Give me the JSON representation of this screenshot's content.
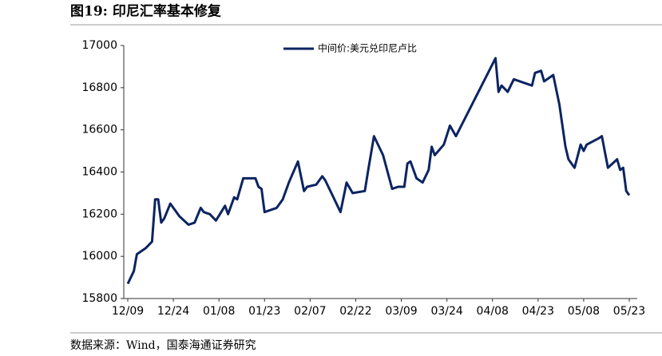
{
  "chart_data": {
    "type": "line",
    "title": "图19:  印尼汇率基本修复",
    "source": "数据来源：Wind，国泰海通证券研究",
    "x": [
      "12/09",
      "12/11",
      "12/12",
      "12/15",
      "12/17",
      "12/18",
      "12/19",
      "12/20",
      "12/21",
      "12/23",
      "12/26",
      "12/29",
      "12/31",
      "01/02",
      "01/03",
      "01/05",
      "01/07",
      "01/10",
      "01/11",
      "01/13",
      "01/14",
      "01/16",
      "01/20",
      "01/21",
      "01/22",
      "01/23",
      "01/27",
      "01/29",
      "01/31",
      "02/03",
      "02/05",
      "02/06",
      "02/09",
      "02/11",
      "02/12",
      "02/14",
      "02/17",
      "02/19",
      "02/21",
      "02/25",
      "02/26",
      "02/28",
      "03/03",
      "03/06",
      "03/08",
      "03/10",
      "03/11",
      "03/12",
      "03/14",
      "03/16",
      "03/18",
      "03/19",
      "03/20",
      "03/23",
      "03/25",
      "03/27",
      "04/09",
      "04/10",
      "04/11",
      "04/13",
      "04/15",
      "04/21",
      "04/22",
      "04/24",
      "04/25",
      "04/28",
      "04/30",
      "05/02",
      "05/03",
      "05/05",
      "05/07",
      "05/08",
      "05/09",
      "05/13",
      "05/14",
      "05/16",
      "05/19",
      "05/20",
      "05/21",
      "05/22",
      "05/23"
    ],
    "series": [
      {
        "name": "中间价:美元兑印尼卢比",
        "color": "#0c2461",
        "values": [
          15870,
          15930,
          16010,
          16040,
          16070,
          16270,
          16270,
          16160,
          16180,
          16250,
          16190,
          16150,
          16160,
          16230,
          16210,
          16200,
          16170,
          16240,
          16200,
          16280,
          16270,
          16370,
          16370,
          16330,
          16320,
          16210,
          16230,
          16270,
          16350,
          16450,
          16310,
          16330,
          16340,
          16380,
          16360,
          16300,
          16210,
          16350,
          16300,
          16310,
          16400,
          16570,
          16480,
          16320,
          16330,
          16330,
          16440,
          16450,
          16370,
          16350,
          16410,
          16520,
          16480,
          16530,
          16620,
          16570,
          16940,
          16780,
          16810,
          16780,
          16840,
          16810,
          16870,
          16880,
          16830,
          16860,
          16720,
          16520,
          16460,
          16420,
          16530,
          16500,
          16530,
          16560,
          16570,
          16420,
          16460,
          16410,
          16420,
          16310,
          16290
        ]
      }
    ],
    "xticks": [
      "12/09",
      "12/24",
      "01/08",
      "01/23",
      "02/07",
      "02/22",
      "03/09",
      "03/24",
      "04/08",
      "04/23",
      "05/08",
      "05/23"
    ],
    "ylim": [
      15800,
      17000
    ],
    "yticks": [
      15800,
      16000,
      16200,
      16400,
      16600,
      16800,
      17000
    ],
    "legend": "top"
  }
}
